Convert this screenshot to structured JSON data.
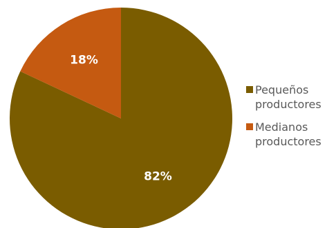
{
  "chart_data": {
    "type": "pie",
    "title": "",
    "slices": [
      {
        "label": "Pequeños productores",
        "label_lines": [
          "Pequeños",
          "productores"
        ],
        "value": 82,
        "display": "82%",
        "color": "#7a5c00"
      },
      {
        "label": "Medianos productores",
        "label_lines": [
          "Medianos",
          "productores"
        ],
        "value": 18,
        "display": "18%",
        "color": "#c55a11"
      }
    ],
    "start_angle_deg": 0,
    "direction": "clockwise",
    "legend_position": "right"
  }
}
